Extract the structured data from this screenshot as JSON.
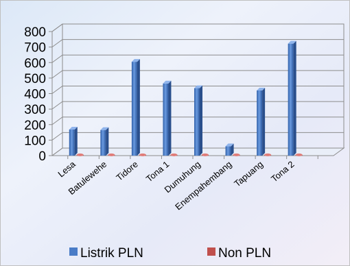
{
  "chart_data": {
    "type": "bar",
    "categories": [
      "Lesa",
      "Batulewehe",
      "Tidore",
      "Tona 1",
      "Dumuhung",
      "Enempahembang",
      "Tapuang",
      "Tona 2"
    ],
    "series": [
      {
        "name": "Listrik PLN",
        "color": "#4a7cc7",
        "values": [
          168,
          165,
          605,
          465,
          435,
          60,
          420,
          722
        ]
      },
      {
        "name": "Non PLN",
        "color": "#c0504d",
        "values": [
          5,
          5,
          5,
          5,
          5,
          5,
          5,
          5
        ]
      }
    ],
    "ylim": [
      0,
      800
    ],
    "yticks": [
      0,
      100,
      200,
      300,
      400,
      500,
      600,
      700,
      800
    ],
    "grid": true,
    "legend_position": "bottom",
    "title": "",
    "xlabel": "",
    "ylabel": ""
  }
}
